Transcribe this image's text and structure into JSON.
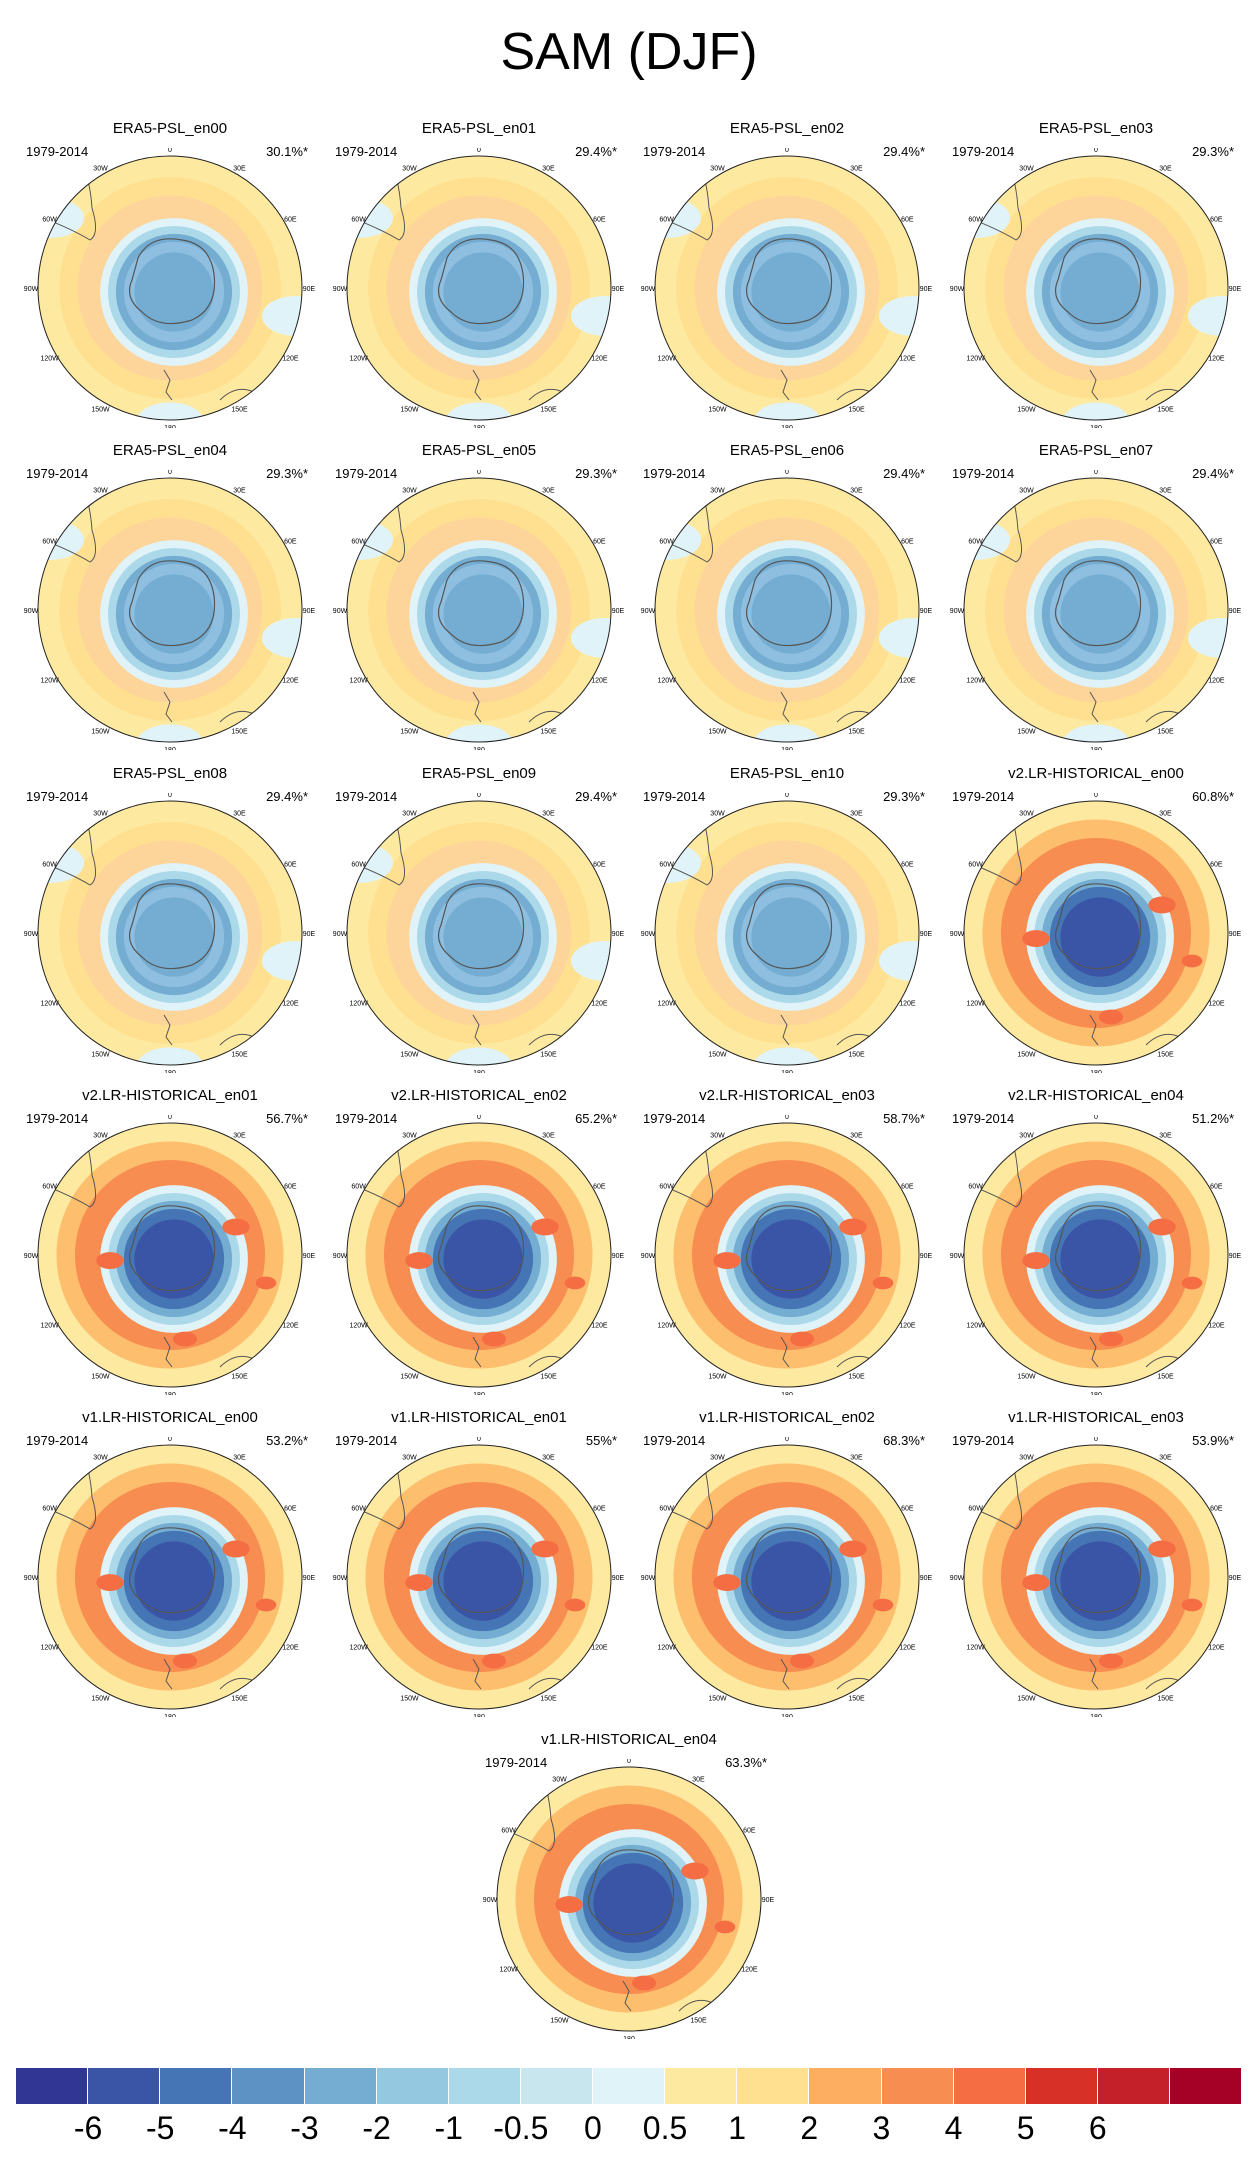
{
  "title": "SAM (DJF)",
  "chart_data": {
    "type": "heatmap",
    "projection": "south-polar-stereographic",
    "colorbar": {
      "ticks": [
        "-6",
        "-5",
        "-4",
        "-3",
        "-2",
        "-1",
        "-0.5",
        "0",
        "0.5",
        "1",
        "2",
        "3",
        "4",
        "5",
        "6"
      ],
      "colors": [
        "#313695",
        "#3a55a6",
        "#4575b4",
        "#5c92c4",
        "#74add1",
        "#94c7e0",
        "#abd9e9",
        "#c8e6ee",
        "#e0f3f8",
        "#fee9a0",
        "#fee090",
        "#fdae61",
        "#f88d52",
        "#f46d43",
        "#d73027",
        "#c4202a",
        "#a50026"
      ]
    },
    "longitude_labels": [
      "0",
      "30E",
      "60E",
      "90E",
      "120E",
      "150E",
      "180",
      "150W",
      "120W",
      "90W",
      "60W",
      "30W"
    ],
    "panels": [
      {
        "name": "ERA5-PSL_en00",
        "period": "1979-2014",
        "variance": "30.1%*",
        "intensity": 0.45
      },
      {
        "name": "ERA5-PSL_en01",
        "period": "1979-2014",
        "variance": "29.4%*",
        "intensity": 0.45
      },
      {
        "name": "ERA5-PSL_en02",
        "period": "1979-2014",
        "variance": "29.4%*",
        "intensity": 0.45
      },
      {
        "name": "ERA5-PSL_en03",
        "period": "1979-2014",
        "variance": "29.3%*",
        "intensity": 0.45
      },
      {
        "name": "ERA5-PSL_en04",
        "period": "1979-2014",
        "variance": "29.3%*",
        "intensity": 0.45
      },
      {
        "name": "ERA5-PSL_en05",
        "period": "1979-2014",
        "variance": "29.3%*",
        "intensity": 0.45
      },
      {
        "name": "ERA5-PSL_en06",
        "period": "1979-2014",
        "variance": "29.4%*",
        "intensity": 0.45
      },
      {
        "name": "ERA5-PSL_en07",
        "period": "1979-2014",
        "variance": "29.4%*",
        "intensity": 0.45
      },
      {
        "name": "ERA5-PSL_en08",
        "period": "1979-2014",
        "variance": "29.4%*",
        "intensity": 0.45
      },
      {
        "name": "ERA5-PSL_en09",
        "period": "1979-2014",
        "variance": "29.4%*",
        "intensity": 0.45
      },
      {
        "name": "ERA5-PSL_en10",
        "period": "1979-2014",
        "variance": "29.3%*",
        "intensity": 0.45
      },
      {
        "name": "v2.LR-HISTORICAL_en00",
        "period": "1979-2014",
        "variance": "60.8%*",
        "intensity": 0.95
      },
      {
        "name": "v2.LR-HISTORICAL_en01",
        "period": "1979-2014",
        "variance": "56.7%*",
        "intensity": 0.9
      },
      {
        "name": "v2.LR-HISTORICAL_en02",
        "period": "1979-2014",
        "variance": "65.2%*",
        "intensity": 1.0
      },
      {
        "name": "v2.LR-HISTORICAL_en03",
        "period": "1979-2014",
        "variance": "58.7%*",
        "intensity": 0.85
      },
      {
        "name": "v2.LR-HISTORICAL_en04",
        "period": "1979-2014",
        "variance": "51.2%*",
        "intensity": 0.75
      },
      {
        "name": "v1.LR-HISTORICAL_en00",
        "period": "1979-2014",
        "variance": "53.2%*",
        "intensity": 0.8
      },
      {
        "name": "v1.LR-HISTORICAL_en01",
        "period": "1979-2014",
        "variance": "55%*",
        "intensity": 0.75
      },
      {
        "name": "v1.LR-HISTORICAL_en02",
        "period": "1979-2014",
        "variance": "68.3%*",
        "intensity": 1.0
      },
      {
        "name": "v1.LR-HISTORICAL_en03",
        "period": "1979-2014",
        "variance": "53.9%*",
        "intensity": 0.8
      },
      {
        "name": "v1.LR-HISTORICAL_en04",
        "period": "1979-2014",
        "variance": "63.3%*",
        "intensity": 0.95
      }
    ]
  }
}
